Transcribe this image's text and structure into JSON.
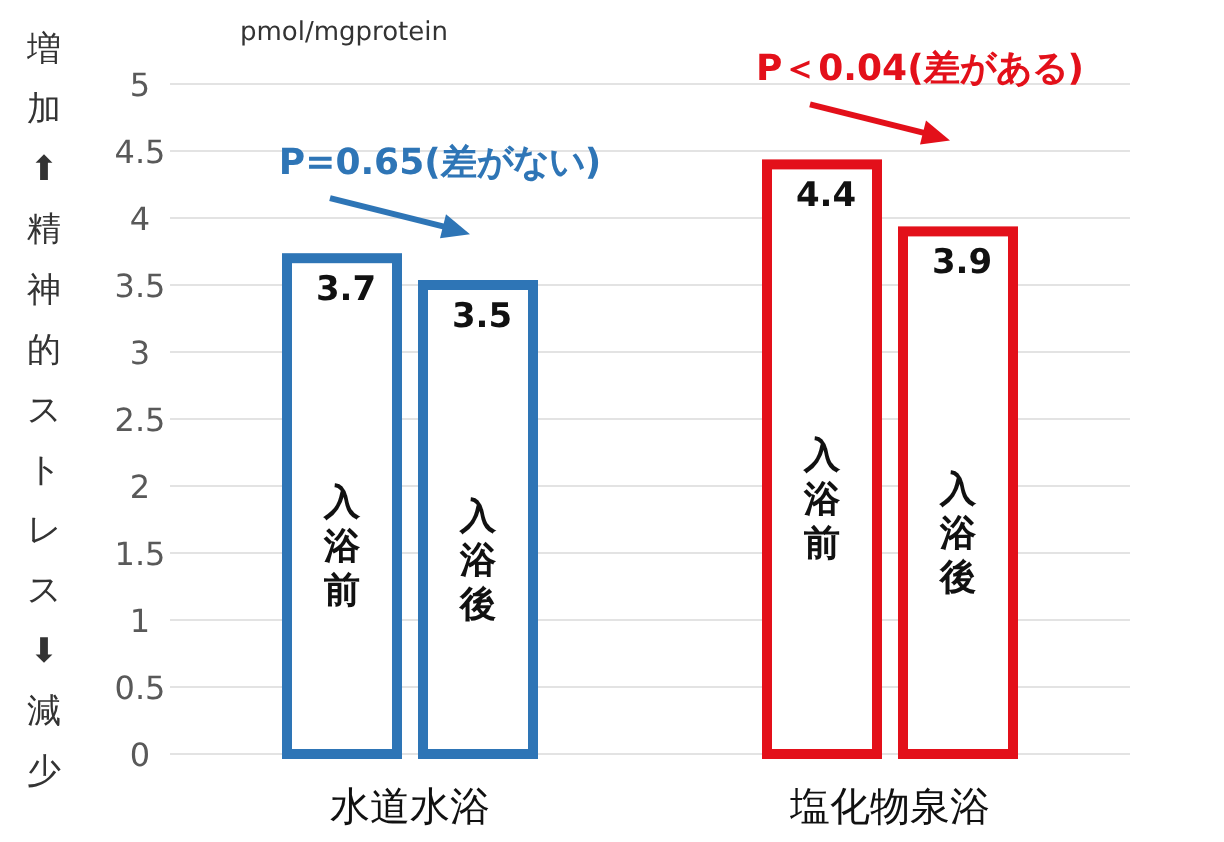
{
  "chart_data": {
    "type": "bar",
    "categories": [
      "水道水浴",
      "塩化物泉浴"
    ],
    "series": [
      {
        "name": "入浴前",
        "colors": [
          "#2e75b6",
          "#e3101a"
        ],
        "values": [
          3.7,
          4.4
        ]
      },
      {
        "name": "入浴後",
        "colors": [
          "#2e75b6",
          "#e3101a"
        ],
        "values": [
          3.5,
          3.9
        ]
      }
    ],
    "ylabel": "増加⬆精神的ストレス⬇減少",
    "ylim": [
      0,
      5
    ],
    "yticks": [
      0,
      0.5,
      1,
      1.5,
      2,
      2.5,
      3,
      3.5,
      4,
      4.5,
      5
    ],
    "grid": "y",
    "data_labels": true,
    "annotations": [
      "pmol/mgprotein",
      "P=0.65(差がない)",
      "P＜0.04(差がある)"
    ]
  }
}
